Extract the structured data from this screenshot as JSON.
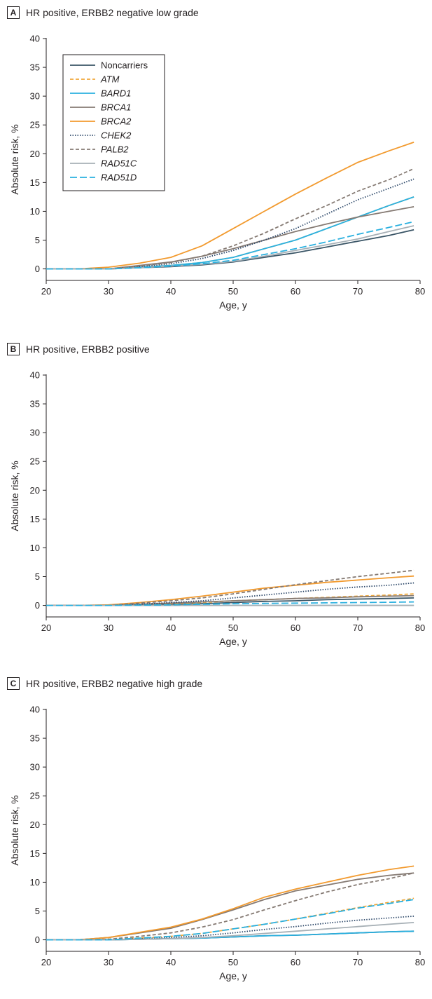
{
  "chart_data": [
    {
      "type": "line",
      "letter": "A",
      "title": "HR positive, ERBB2 negative low grade",
      "xlabel": "Age, y",
      "ylabel": "Absolute risk, %",
      "xlim": [
        20,
        80
      ],
      "ylim": [
        -2,
        40
      ],
      "xticks": [
        20,
        30,
        40,
        50,
        60,
        70,
        80
      ],
      "yticks": [
        0,
        5,
        10,
        15,
        20,
        25,
        30,
        35,
        40
      ],
      "grid": false,
      "legend_position": "top-left",
      "x": [
        20,
        25,
        30,
        35,
        40,
        45,
        50,
        55,
        60,
        65,
        70,
        75,
        79
      ],
      "series": [
        {
          "name": "Noncarriers",
          "values": [
            0,
            0,
            0,
            0.2,
            0.4,
            0.7,
            1.2,
            2.0,
            2.8,
            3.8,
            4.8,
            5.8,
            6.8
          ]
        },
        {
          "name": "ATM",
          "values": [
            0,
            0,
            0,
            0.3,
            0.6,
            1.1,
            2.0,
            3.5,
            5.0,
            7.0,
            9.0,
            11.0,
            12.5
          ]
        },
        {
          "name": "BARD1",
          "values": [
            0,
            0,
            0,
            0.3,
            0.6,
            1.1,
            2.0,
            3.5,
            5.0,
            7.0,
            9.0,
            11.0,
            12.5
          ]
        },
        {
          "name": "BRCA1",
          "values": [
            0,
            0,
            0,
            0.6,
            1.2,
            2.2,
            3.5,
            5.0,
            6.5,
            7.8,
            9.0,
            10.0,
            10.8
          ]
        },
        {
          "name": "BRCA2",
          "values": [
            0,
            0,
            0.3,
            1.0,
            2.0,
            4.0,
            7.0,
            10.0,
            13.0,
            15.8,
            18.5,
            20.5,
            22.0
          ]
        },
        {
          "name": "CHEK2",
          "values": [
            0,
            0,
            0,
            0.4,
            0.9,
            1.8,
            3.2,
            5.0,
            7.0,
            9.5,
            12.0,
            14.0,
            15.6
          ]
        },
        {
          "name": "PALB2",
          "values": [
            0,
            0,
            0,
            0.5,
            1.1,
            2.2,
            4.0,
            6.2,
            8.7,
            11.0,
            13.5,
            15.5,
            17.4
          ]
        },
        {
          "name": "RAD51C",
          "values": [
            0,
            0,
            0,
            0.2,
            0.5,
            0.8,
            1.3,
            2.2,
            3.2,
            4.2,
            5.2,
            6.5,
            7.5
          ]
        },
        {
          "name": "RAD51D",
          "values": [
            0,
            0,
            0,
            0.2,
            0.5,
            0.9,
            1.5,
            2.5,
            3.5,
            4.7,
            6.0,
            7.2,
            8.2
          ]
        }
      ]
    },
    {
      "type": "line",
      "letter": "B",
      "title": "HR positive, ERBB2 positive",
      "xlabel": "Age, y",
      "ylabel": "Absolute risk, %",
      "xlim": [
        20,
        80
      ],
      "ylim": [
        -2,
        40
      ],
      "xticks": [
        20,
        30,
        40,
        50,
        60,
        70,
        80
      ],
      "yticks": [
        0,
        5,
        10,
        15,
        20,
        25,
        30,
        35,
        40
      ],
      "grid": false,
      "x": [
        20,
        25,
        30,
        35,
        40,
        45,
        50,
        55,
        60,
        65,
        70,
        75,
        79
      ],
      "series": [
        {
          "name": "Noncarriers",
          "values": [
            0,
            0,
            0,
            0.1,
            0.2,
            0.3,
            0.5,
            0.7,
            0.8,
            1.0,
            1.1,
            1.2,
            1.3
          ]
        },
        {
          "name": "ATM",
          "values": [
            0,
            0,
            0,
            0.2,
            0.3,
            0.5,
            0.8,
            1.0,
            1.2,
            1.4,
            1.6,
            1.8,
            2.0
          ]
        },
        {
          "name": "BARD1",
          "values": [
            0,
            0,
            0,
            0,
            0,
            0,
            0,
            0,
            0,
            0,
            0,
            0,
            0
          ]
        },
        {
          "name": "BRCA1",
          "values": [
            0,
            0,
            0,
            0.2,
            0.4,
            0.6,
            0.8,
            1.0,
            1.2,
            1.3,
            1.5,
            1.6,
            1.7
          ]
        },
        {
          "name": "BRCA2",
          "values": [
            0,
            0,
            0.1,
            0.5,
            1.0,
            1.6,
            2.3,
            3.0,
            3.5,
            4.0,
            4.4,
            4.8,
            5.1
          ]
        },
        {
          "name": "CHEK2",
          "values": [
            0,
            0,
            0,
            0.2,
            0.5,
            0.8,
            1.3,
            1.8,
            2.3,
            2.8,
            3.2,
            3.5,
            3.9
          ]
        },
        {
          "name": "PALB2",
          "values": [
            0,
            0,
            0,
            0.4,
            0.8,
            1.3,
            2.0,
            2.8,
            3.6,
            4.3,
            5.0,
            5.6,
            6.1
          ]
        },
        {
          "name": "RAD51C",
          "values": [
            0,
            0,
            0,
            0,
            0,
            0,
            0,
            0,
            0,
            0,
            0,
            0,
            0
          ]
        },
        {
          "name": "RAD51D",
          "values": [
            0,
            0,
            0,
            0.05,
            0.1,
            0.2,
            0.3,
            0.35,
            0.4,
            0.45,
            0.5,
            0.55,
            0.6
          ]
        }
      ]
    },
    {
      "type": "line",
      "letter": "C",
      "title": "HR positive, ERBB2 negative high grade",
      "xlabel": "Age, y",
      "ylabel": "Absolute risk, %",
      "xlim": [
        20,
        80
      ],
      "ylim": [
        -2,
        40
      ],
      "xticks": [
        20,
        30,
        40,
        50,
        60,
        70,
        80
      ],
      "yticks": [
        0,
        5,
        10,
        15,
        20,
        25,
        30,
        35,
        40
      ],
      "grid": false,
      "x": [
        20,
        25,
        30,
        35,
        40,
        45,
        50,
        55,
        60,
        65,
        70,
        75,
        79
      ],
      "series": [
        {
          "name": "Noncarriers",
          "values": [
            0,
            0,
            0,
            0.1,
            0.2,
            0.3,
            0.5,
            0.7,
            0.8,
            1.0,
            1.2,
            1.4,
            1.5
          ]
        },
        {
          "name": "ATM",
          "values": [
            0,
            0,
            0.1,
            0.3,
            0.6,
            1.1,
            1.9,
            2.7,
            3.6,
            4.6,
            5.6,
            6.5,
            7.2
          ]
        },
        {
          "name": "BARD1",
          "values": [
            0,
            0,
            0,
            0.1,
            0.2,
            0.3,
            0.5,
            0.7,
            0.8,
            1.0,
            1.2,
            1.4,
            1.5
          ]
        },
        {
          "name": "BRCA1",
          "values": [
            0,
            0,
            0.4,
            1.2,
            2.0,
            3.5,
            5.2,
            7.0,
            8.5,
            9.5,
            10.5,
            11.2,
            11.6
          ]
        },
        {
          "name": "BRCA2",
          "values": [
            0,
            0,
            0.4,
            1.3,
            2.2,
            3.6,
            5.4,
            7.4,
            8.8,
            10.0,
            11.2,
            12.2,
            12.8
          ]
        },
        {
          "name": "CHEK2",
          "values": [
            0,
            0,
            0,
            0.2,
            0.4,
            0.7,
            1.2,
            1.8,
            2.3,
            2.9,
            3.4,
            3.8,
            4.1
          ]
        },
        {
          "name": "PALB2",
          "values": [
            0,
            0,
            0.1,
            0.6,
            1.2,
            2.2,
            3.5,
            5.2,
            6.8,
            8.3,
            9.6,
            10.6,
            11.6
          ]
        },
        {
          "name": "RAD51C",
          "values": [
            0,
            0,
            0,
            0.1,
            0.2,
            0.4,
            0.7,
            1.1,
            1.5,
            1.9,
            2.3,
            2.7,
            3.0
          ]
        },
        {
          "name": "RAD51D",
          "values": [
            0,
            0,
            0,
            0.3,
            0.6,
            1.1,
            1.9,
            2.7,
            3.6,
            4.5,
            5.5,
            6.3,
            7.0
          ]
        }
      ]
    }
  ],
  "series_styles": [
    {
      "color": "#3a5566",
      "dash": ""
    },
    {
      "color": "#f0a83a",
      "dash": "5,3"
    },
    {
      "color": "#2ab0df",
      "dash": ""
    },
    {
      "color": "#857a73",
      "dash": ""
    },
    {
      "color": "#f29a2e",
      "dash": ""
    },
    {
      "color": "#2f4a6b",
      "dash": "1.5,2"
    },
    {
      "color": "#857a73",
      "dash": "5,3"
    },
    {
      "color": "#a7b0b6",
      "dash": ""
    },
    {
      "color": "#2ab0df",
      "dash": "10,4"
    }
  ],
  "italic_series": [
    "ATM",
    "BARD1",
    "BRCA1",
    "BRCA2",
    "CHEK2",
    "PALB2",
    "RAD51C",
    "RAD51D"
  ]
}
